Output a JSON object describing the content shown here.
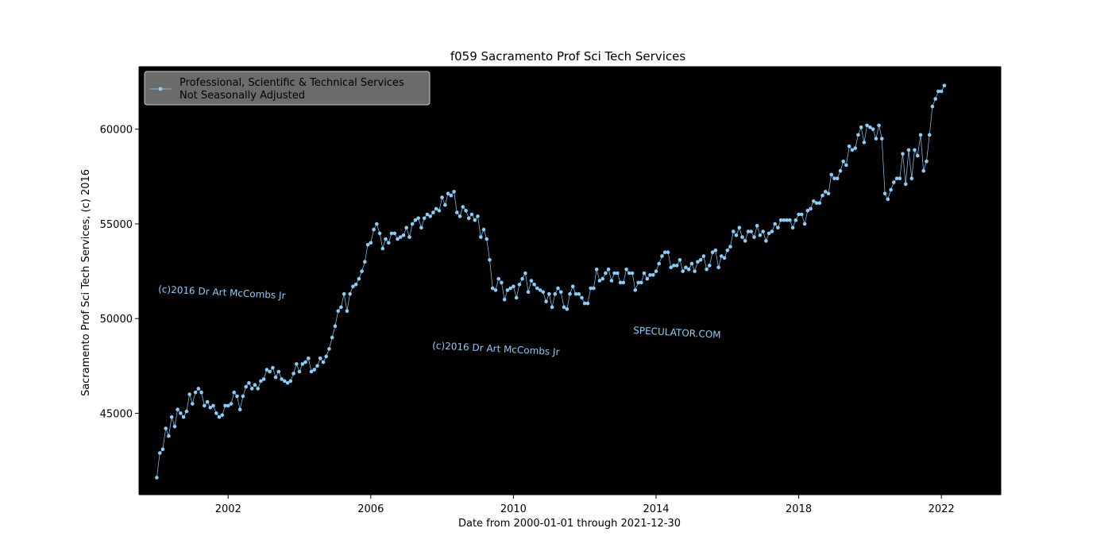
{
  "chart_data": {
    "type": "line",
    "title": "f059 Sacramento Prof Sci Tech Services",
    "xlabel": "Date from 2000-01-01 through 2021-12-30",
    "ylabel": "Sacramento Prof Sci Tech Services, (c) 2016",
    "x_ticks": [
      "2002",
      "2006",
      "2010",
      "2014",
      "2018",
      "2022"
    ],
    "y_ticks": [
      "45000",
      "50000",
      "55000",
      "60000"
    ],
    "xlim": [
      "1999-07-01",
      "2023-09-01"
    ],
    "ylim": [
      40700,
      63300
    ],
    "grid": false,
    "legend_placement": "upper-left",
    "background_color": "#000000",
    "series_color": "#87cefa",
    "series": [
      {
        "name": "Professional, Scientific & Technical Services\nNot Seasonally Adjusted",
        "x_start": "2000-01",
        "frequency": "monthly",
        "values": [
          41600,
          42900,
          43100,
          44200,
          43800,
          44800,
          44300,
          45200,
          45000,
          44800,
          45100,
          46000,
          45500,
          46100,
          46300,
          46100,
          45400,
          45600,
          45300,
          45400,
          45000,
          44800,
          44900,
          45400,
          45400,
          45500,
          46100,
          45900,
          45200,
          45900,
          46400,
          46600,
          46300,
          46500,
          46300,
          46700,
          46800,
          47300,
          47200,
          47400,
          46900,
          47200,
          46800,
          46700,
          46600,
          46700,
          47100,
          47600,
          47200,
          47600,
          47700,
          47900,
          47200,
          47300,
          47500,
          47900,
          47700,
          48000,
          48400,
          49000,
          49600,
          50400,
          50600,
          51300,
          50400,
          51300,
          51700,
          51800,
          52100,
          52500,
          53000,
          53900,
          54000,
          54700,
          55000,
          54500,
          53700,
          54200,
          54000,
          54500,
          54500,
          54200,
          54300,
          54400,
          54800,
          54300,
          55000,
          55200,
          55300,
          54800,
          55300,
          55500,
          55400,
          55600,
          55800,
          55700,
          56400,
          56000,
          56600,
          56500,
          56700,
          55600,
          55400,
          55900,
          55700,
          55300,
          55500,
          55200,
          55400,
          54300,
          54700,
          54200,
          53100,
          51600,
          51500,
          52100,
          51900,
          51000,
          51500,
          51600,
          51700,
          51100,
          51800,
          52100,
          52400,
          51400,
          52000,
          51800,
          51600,
          51500,
          51400,
          50900,
          51300,
          50600,
          51300,
          51600,
          51400,
          50600,
          50500,
          51300,
          51700,
          51300,
          51300,
          51100,
          50800,
          50800,
          51600,
          51600,
          52600,
          52000,
          52100,
          52400,
          52600,
          52000,
          52400,
          52400,
          51900,
          51900,
          52600,
          52400,
          52400,
          51500,
          51900,
          51900,
          52400,
          52100,
          52300,
          52300,
          52500,
          52900,
          53300,
          53500,
          53500,
          52700,
          52800,
          52800,
          53100,
          52500,
          52700,
          52600,
          52900,
          52500,
          53000,
          53100,
          53300,
          52600,
          52800,
          53500,
          53600,
          52700,
          53300,
          53200,
          53600,
          53800,
          54600,
          54400,
          54800,
          54300,
          54100,
          54600,
          54600,
          54300,
          54900,
          54400,
          54600,
          54100,
          54500,
          54600,
          55000,
          54800,
          55200,
          55200,
          55200,
          55200,
          54800,
          55200,
          55500,
          55500,
          55000,
          55700,
          55800,
          56200,
          56100,
          56100,
          56500,
          56700,
          56600,
          57600,
          57400,
          57400,
          57800,
          58300,
          58100,
          59100,
          58900,
          59000,
          59700,
          60100,
          59300,
          60200,
          60100,
          60000,
          59500,
          60200,
          59500,
          56600,
          56300,
          56800,
          57200,
          57400,
          57400,
          58700,
          57100,
          58900,
          57400,
          58900,
          58600,
          59700,
          57800,
          58300,
          59700,
          61200,
          61600,
          62000,
          62000,
          62300
        ]
      }
    ]
  },
  "watermarks": [
    "(c)2016 Dr Art McCombs Jr",
    "(c)2016 Dr Art McCombs Jr",
    "SPECULATOR.COM"
  ]
}
